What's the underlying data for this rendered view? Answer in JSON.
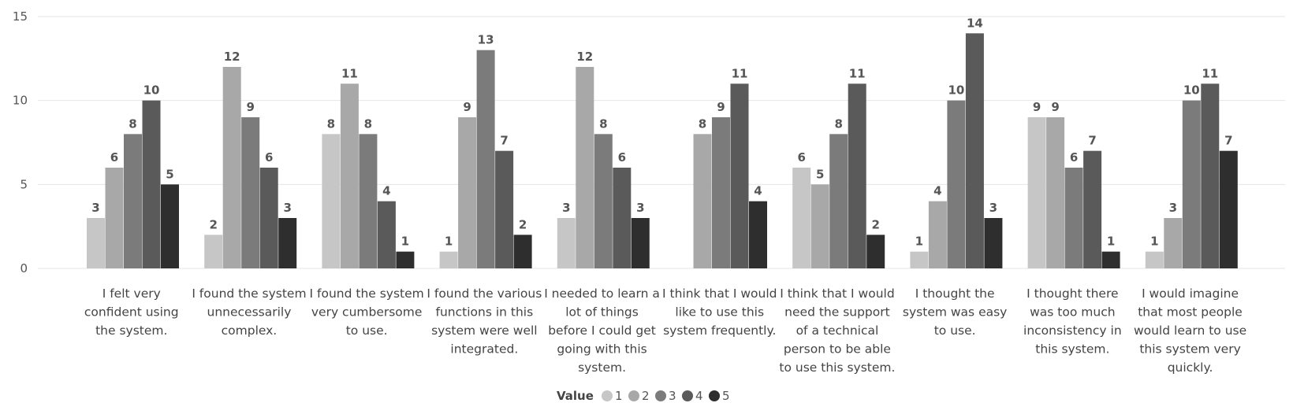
{
  "chart_data": {
    "type": "bar",
    "categories": [
      "I felt very confident using the system.",
      "I found the system unnecessarily complex.",
      "I found the system very cumbersome to use.",
      "I found the various functions in this system were well integrated.",
      "I needed to learn a lot of things before I could get going with this system.",
      "I think that I would like to use this system frequently.",
      "I think that I would need the support of a technical person to be able to use this system.",
      "I thought the system was easy to use.",
      "I thought there was too much inconsistency in this system.",
      "I would imagine that most people would learn to use this system very quickly."
    ],
    "category_lines": [
      [
        "I felt very",
        "confident using",
        "the system."
      ],
      [
        "I found the system",
        "unnecessarily",
        "complex."
      ],
      [
        "I found the system",
        "very cumbersome",
        "to use."
      ],
      [
        "I found the various",
        "functions in this",
        "system were well",
        "integrated."
      ],
      [
        "I needed to learn a",
        "lot of things",
        "before I could get",
        "going with this",
        "system."
      ],
      [
        "I think that I would",
        "like to use this",
        "system frequently."
      ],
      [
        "I think that I would",
        "need the support",
        "of a technical",
        "person to be able",
        "to use this system."
      ],
      [
        "I thought the",
        "system was easy",
        "to use."
      ],
      [
        "I thought there",
        "was too much",
        "inconsistency in",
        "this system."
      ],
      [
        "I would imagine",
        "that most people",
        "would learn to use",
        "this system very",
        "quickly."
      ]
    ],
    "series": [
      {
        "name": "1",
        "color": "#c6c6c6",
        "values": [
          3,
          2,
          8,
          1,
          3,
          null,
          6,
          1,
          9,
          1
        ]
      },
      {
        "name": "2",
        "color": "#a8a8a8",
        "values": [
          6,
          12,
          11,
          9,
          12,
          8,
          5,
          4,
          9,
          3
        ]
      },
      {
        "name": "3",
        "color": "#7b7b7b",
        "values": [
          8,
          9,
          8,
          13,
          8,
          9,
          8,
          10,
          6,
          10
        ]
      },
      {
        "name": "4",
        "color": "#5a5a5a",
        "values": [
          10,
          6,
          4,
          7,
          6,
          11,
          11,
          14,
          7,
          11
        ]
      },
      {
        "name": "5",
        "color": "#2e2e2e",
        "values": [
          5,
          3,
          1,
          2,
          3,
          4,
          2,
          3,
          1,
          7
        ]
      }
    ],
    "ylim": [
      0,
      15
    ],
    "yticks": [
      "0",
      "5",
      "10",
      "15"
    ],
    "legend": {
      "title": "Value",
      "position": "bottom-center"
    },
    "grid": true
  }
}
